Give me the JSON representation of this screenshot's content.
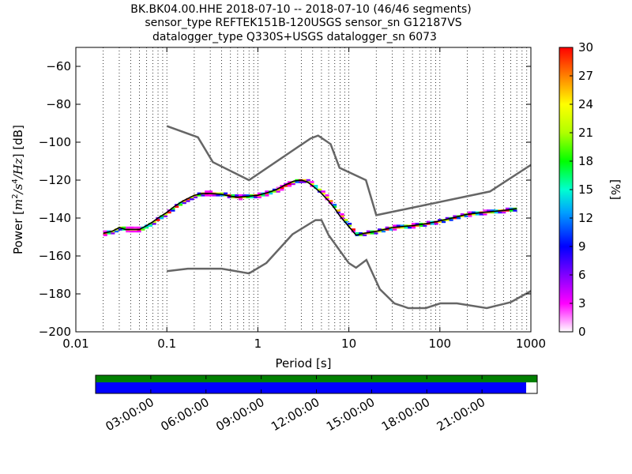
{
  "title": {
    "line1": "BK.BK04.00.HHE   2018-07-10 -- 2018-07-10  (46/46 segments)",
    "line2": "sensor_type REFTEK151B-120USGS sensor_sn G12187VS",
    "line3": "datalogger_type Q330S+USGS datalogger_sn 6073"
  },
  "chart_data": [
    {
      "type": "heatmap",
      "subtype": "probabilistic-power-spectral-density",
      "xlabel": "Period [s]",
      "ylabel": "Power [m²/s⁴/Hz] [dB]",
      "xscale": "log",
      "xlim": [
        0.01,
        1000
      ],
      "ylim": [
        -200,
        -50
      ],
      "x_ticks": [
        0.01,
        0.1,
        1,
        10,
        100,
        1000
      ],
      "x_tick_labels": [
        "0.01",
        "0.1",
        "1",
        "10",
        "100",
        "1000"
      ],
      "y_ticks": [
        -200,
        -180,
        -160,
        -140,
        -120,
        -100,
        -80,
        -60
      ],
      "y_tick_labels": [
        "−200",
        "−180",
        "−160",
        "−140",
        "−120",
        "−100",
        "−80",
        "−60"
      ],
      "grid": "vertical-dotted-minor",
      "colorbar": {
        "label": "[%]",
        "min": 0,
        "max": 30,
        "ticks": [
          0,
          3,
          6,
          9,
          12,
          15,
          18,
          21,
          24,
          27,
          30
        ],
        "tick_labels": [
          "0",
          "3",
          "6",
          "9",
          "12",
          "15",
          "18",
          "21",
          "24",
          "27",
          "30"
        ]
      },
      "noise_models": [
        {
          "name": "NHNM",
          "color": "#666666",
          "x": [
            0.1,
            0.22,
            0.32,
            0.8,
            3.8,
            4.6,
            6.3,
            7.9,
            15.4,
            20,
            354.8,
            1000
          ],
          "y": [
            -91.5,
            -97.4,
            -110.5,
            -120,
            -98,
            -96.5,
            -101,
            -113.5,
            -120,
            -138.5,
            -126,
            -112
          ]
        },
        {
          "name": "NLNM",
          "color": "#666666",
          "x": [
            0.1,
            0.17,
            0.4,
            0.8,
            1.24,
            2.4,
            4.3,
            5,
            6,
            10,
            12,
            15.6,
            21.9,
            31.6,
            45,
            70,
            101,
            154,
            328,
            600,
            1000
          ],
          "y": [
            -168,
            -166.7,
            -166.7,
            -169.2,
            -163.7,
            -148.6,
            -141.1,
            -141.1,
            -149,
            -163.8,
            -166.2,
            -162.1,
            -177.5,
            -185,
            -187.5,
            -187.5,
            -185,
            -185,
            -187.5,
            -184.4,
            -178.5
          ]
        }
      ],
      "mean_curve": {
        "x": [
          0.02,
          0.025,
          0.03,
          0.035,
          0.04,
          0.05,
          0.06,
          0.07,
          0.08,
          0.1,
          0.12,
          0.15,
          0.2,
          0.25,
          0.3,
          0.4,
          0.5,
          0.6,
          0.8,
          1,
          1.3,
          1.6,
          2,
          2.5,
          3,
          3.5,
          4,
          5,
          6,
          7,
          8,
          10,
          12,
          15,
          20,
          30,
          50,
          70,
          100,
          150,
          200,
          300,
          500,
          700
        ],
        "y": [
          -148,
          -147,
          -145,
          -146,
          -146,
          -146,
          -144,
          -142,
          -140,
          -137,
          -134,
          -131,
          -128,
          -127,
          -127,
          -127.5,
          -128.5,
          -129,
          -128.5,
          -128,
          -126.5,
          -125,
          -122.5,
          -120.5,
          -120,
          -121,
          -123,
          -127,
          -131,
          -135,
          -139,
          -144.5,
          -149,
          -148,
          -147,
          -145,
          -144,
          -143,
          -141.5,
          -139.5,
          -138,
          -137,
          -136,
          -135
        ]
      },
      "upper_envelope": {
        "x": [
          0.02,
          0.03,
          0.05,
          0.08,
          0.1,
          0.15,
          0.2,
          0.3,
          0.5,
          0.8,
          1,
          1.5,
          2,
          2.5,
          3,
          3.5,
          4,
          5,
          6,
          7,
          8,
          10,
          12,
          15,
          20,
          30,
          50,
          70,
          100,
          200,
          500,
          700
        ],
        "y": [
          -146,
          -143,
          -141,
          -136,
          -133,
          -129,
          -125,
          -124,
          -125,
          -126,
          -126.5,
          -125,
          -122,
          -119.5,
          -118,
          -119,
          -121,
          -125,
          -129,
          -133,
          -137,
          -141,
          -143,
          -143,
          -141,
          -140,
          -139,
          -138,
          -137,
          -135,
          -132,
          -131
        ]
      },
      "lower_envelope": {
        "x": [
          0.02,
          0.03,
          0.05,
          0.08,
          0.1,
          0.15,
          0.2,
          0.3,
          0.5,
          0.8,
          1,
          1.5,
          2,
          2.5,
          3,
          3.5,
          4,
          5,
          6,
          7,
          8,
          10,
          12,
          15,
          20,
          25,
          30,
          40,
          50,
          70,
          100,
          150,
          200,
          300,
          500,
          700
        ],
        "y": [
          -149,
          -148,
          -149,
          -146,
          -142,
          -138,
          -134,
          -133,
          -132,
          -131,
          -130.5,
          -129,
          -126,
          -123,
          -122,
          -123,
          -125,
          -129,
          -133,
          -137,
          -141,
          -147,
          -152,
          -155,
          -159,
          -163,
          -166,
          -168,
          -166,
          -161,
          -157,
          -154,
          -152,
          -150,
          -148,
          -147
        ]
      }
    },
    {
      "type": "timeline",
      "description": "data coverage bar",
      "coverage_color": "#0000ff",
      "overlap_color": "#008000",
      "coverage_end_fraction": 0.975,
      "x_tick_labels": [
        "03:00:00",
        "06:00:00",
        "09:00:00",
        "12:00:00",
        "15:00:00",
        "18:00:00",
        "21:00:00"
      ],
      "x_tick_hours": [
        3,
        6,
        9,
        12,
        15,
        18,
        21
      ],
      "span_hours": 24
    }
  ]
}
